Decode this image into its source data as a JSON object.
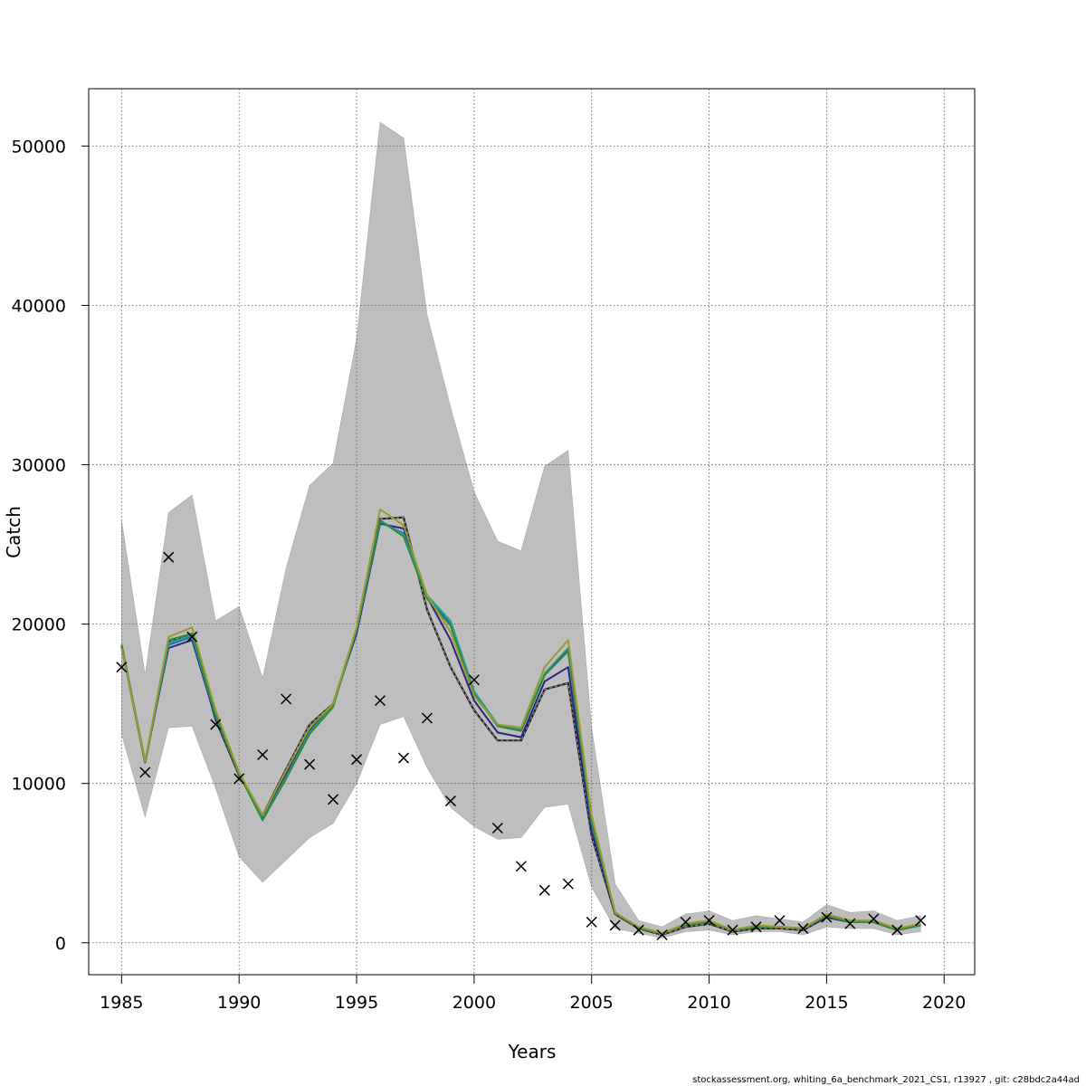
{
  "chart_data": {
    "type": "line",
    "xlabel": "Years",
    "ylabel": "Catch",
    "xlim": [
      1983.6,
      2021.3
    ],
    "ylim": [
      -2000,
      53600
    ],
    "grid": true,
    "x_ticks": [
      1985,
      1990,
      1995,
      2000,
      2005,
      2010,
      2015,
      2020
    ],
    "y_ticks": [
      0,
      10000,
      20000,
      30000,
      40000,
      50000
    ],
    "x": [
      1985,
      1986,
      1987,
      1988,
      1989,
      1990,
      1991,
      1992,
      1993,
      1994,
      1995,
      1996,
      1997,
      1998,
      1999,
      2000,
      2001,
      2002,
      2003,
      2004,
      2005,
      2006,
      2007,
      2008,
      2009,
      2010,
      2011,
      2012,
      2013,
      2014,
      2015,
      2016,
      2017,
      2018,
      2019
    ],
    "confidence_band": {
      "lower": [
        13100,
        7900,
        13500,
        13600,
        9700,
        5400,
        3800,
        5200,
        6600,
        7500,
        10000,
        13700,
        14200,
        11000,
        8500,
        7300,
        6500,
        6600,
        8500,
        8700,
        3500,
        900,
        600,
        300,
        700,
        800,
        500,
        700,
        700,
        500,
        1000,
        900,
        900,
        500,
        700
      ],
      "upper": [
        26500,
        16800,
        27000,
        28100,
        20200,
        21100,
        16600,
        23500,
        28700,
        30100,
        37900,
        51500,
        50500,
        39400,
        33600,
        28300,
        25200,
        24600,
        29900,
        30900,
        13500,
        3700,
        1400,
        1000,
        1800,
        2000,
        1400,
        1700,
        1500,
        1300,
        2400,
        1900,
        2000,
        1400,
        1700
      ],
      "color": "#bebebe"
    },
    "series": [
      {
        "color": "#222222",
        "dashed": true,
        "values": [
          18600,
          11300,
          18900,
          19400,
          14000,
          10500,
          8000,
          10900,
          13700,
          15000,
          19600,
          26600,
          26700,
          20900,
          17300,
          14600,
          12700,
          12700,
          15900,
          16300,
          6700,
          1800,
          900,
          500,
          1000,
          1200,
          700,
          900,
          900,
          800,
          1600,
          1300,
          1300,
          800,
          1100
        ]
      },
      {
        "color": "#2a2580",
        "values": [
          18700,
          11400,
          18500,
          19000,
          14100,
          10600,
          7800,
          10600,
          13300,
          15000,
          19400,
          26300,
          26000,
          21700,
          19000,
          15200,
          13200,
          12900,
          16400,
          17300,
          7000,
          1900,
          900,
          600,
          1100,
          1300,
          800,
          1000,
          1000,
          900,
          1600,
          1300,
          1300,
          800,
          1100
        ]
      },
      {
        "color": "#1f6fb0",
        "values": [
          18700,
          11400,
          18700,
          19200,
          14200,
          10600,
          7800,
          10400,
          13200,
          14900,
          19600,
          26400,
          25700,
          21800,
          20000,
          15700,
          13600,
          13300,
          16800,
          18300,
          7500,
          1900,
          900,
          600,
          1100,
          1300,
          800,
          1000,
          1000,
          900,
          1700,
          1300,
          1300,
          800,
          1100
        ]
      },
      {
        "color": "#2aa198",
        "values": [
          18700,
          11400,
          18800,
          19300,
          14300,
          10600,
          7700,
          10400,
          13200,
          14900,
          19700,
          26500,
          25600,
          21800,
          20200,
          15800,
          13700,
          13400,
          16900,
          18500,
          7600,
          1900,
          900,
          600,
          1100,
          1300,
          800,
          1000,
          1000,
          900,
          1700,
          1300,
          1300,
          800,
          1100
        ]
      },
      {
        "color": "#2e8b3e",
        "values": [
          18700,
          11300,
          19000,
          19400,
          14300,
          10600,
          7700,
          10300,
          13100,
          14800,
          19700,
          26500,
          25500,
          21600,
          19900,
          15600,
          13600,
          13300,
          16800,
          18400,
          7600,
          1900,
          900,
          600,
          1100,
          1300,
          800,
          1000,
          1000,
          900,
          1700,
          1300,
          1300,
          800,
          1100
        ]
      },
      {
        "color": "#9a9a30",
        "values": [
          18500,
          11400,
          19200,
          19800,
          14600,
          10700,
          8000,
          10800,
          13500,
          15000,
          19800,
          27200,
          26200,
          21800,
          19500,
          15500,
          13700,
          13500,
          17300,
          19000,
          8000,
          1900,
          1000,
          600,
          1200,
          1400,
          800,
          1100,
          1000,
          900,
          1800,
          1400,
          1400,
          900,
          1200
        ]
      }
    ],
    "observations": {
      "marker": "x",
      "values": [
        17300,
        10700,
        24200,
        19200,
        13700,
        10300,
        11800,
        15300,
        11200,
        9000,
        11500,
        15200,
        11600,
        14100,
        8900,
        16500,
        7200,
        4800,
        3300,
        3700,
        1300,
        1100,
        800,
        500,
        1300,
        1400,
        800,
        1000,
        1400,
        900,
        1600,
        1200,
        1500,
        800,
        1400
      ]
    }
  },
  "footer": {
    "note": "stockassessment.org, whiting_6a_benchmark_2021_CS1, r13927 , git: c28bdc2a44ad"
  }
}
